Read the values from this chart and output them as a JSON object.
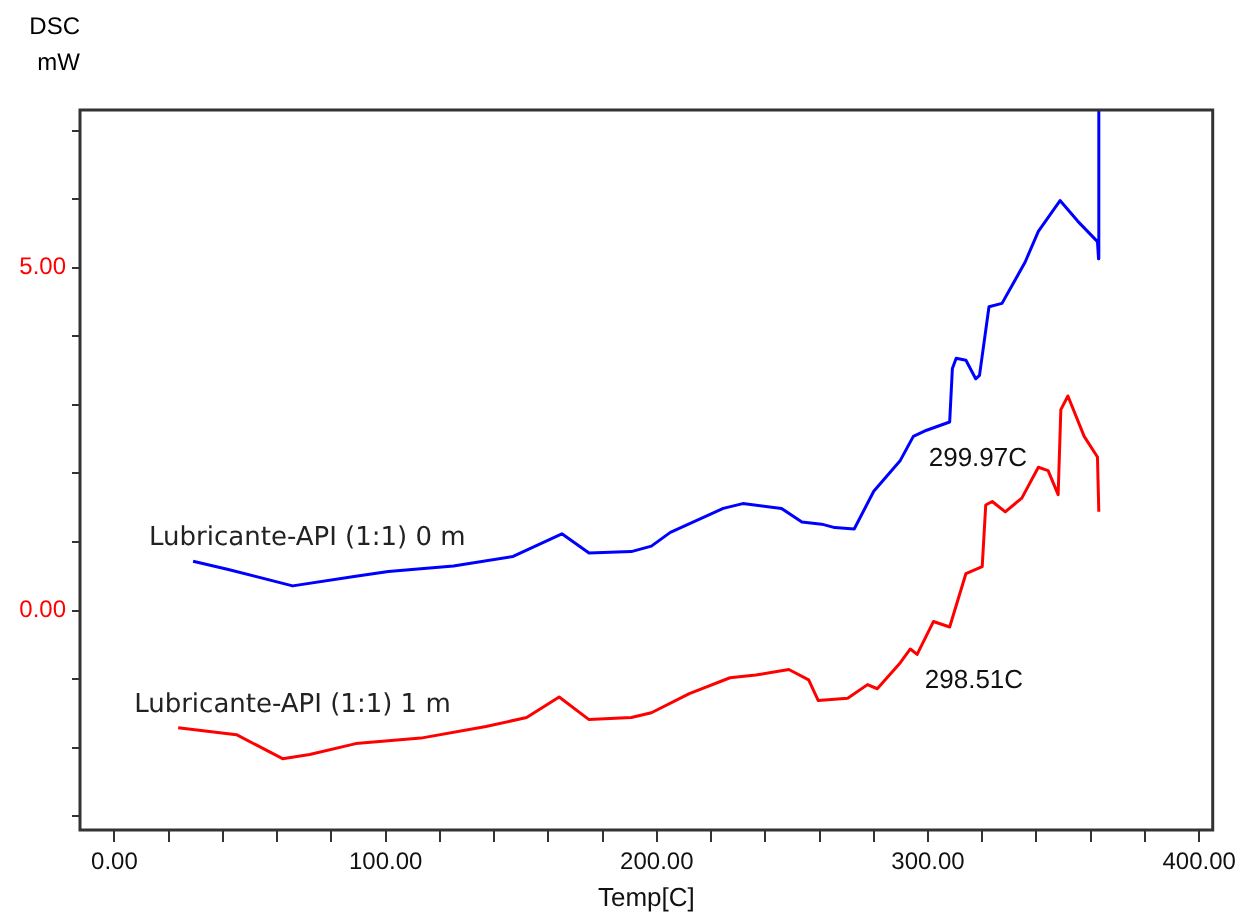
{
  "chart_data": {
    "type": "line",
    "xlabel": "Temp[C]",
    "ylabel": "DSC\nmW",
    "xlim": [
      -12.7,
      405
    ],
    "ylim": [
      -3.2,
      7.3
    ],
    "xticks": [
      {
        "value": 0,
        "label": "0.00"
      },
      {
        "value": 20,
        "label": null
      },
      {
        "value": 40,
        "label": null
      },
      {
        "value": 60,
        "label": null
      },
      {
        "value": 80,
        "label": null
      },
      {
        "value": 100,
        "label": "100.00"
      },
      {
        "value": 120,
        "label": null
      },
      {
        "value": 140,
        "label": null
      },
      {
        "value": 160,
        "label": null
      },
      {
        "value": 180,
        "label": null
      },
      {
        "value": 200,
        "label": "200.00"
      },
      {
        "value": 220,
        "label": null
      },
      {
        "value": 240,
        "label": null
      },
      {
        "value": 260,
        "label": null
      },
      {
        "value": 280,
        "label": null
      },
      {
        "value": 300,
        "label": "300.00"
      },
      {
        "value": 320,
        "label": null
      },
      {
        "value": 340,
        "label": null
      },
      {
        "value": 360,
        "label": null
      },
      {
        "value": 380,
        "label": null
      },
      {
        "value": 400,
        "label": "400.00"
      }
    ],
    "yticks": [
      {
        "value": -3,
        "label": null
      },
      {
        "value": -2,
        "label": null
      },
      {
        "value": -1,
        "label": null
      },
      {
        "value": 0,
        "label": "0.00"
      },
      {
        "value": 1,
        "label": null
      },
      {
        "value": 2,
        "label": null
      },
      {
        "value": 3,
        "label": null
      },
      {
        "value": 4,
        "label": null
      },
      {
        "value": 5,
        "label": "5.00"
      },
      {
        "value": 6,
        "label": null
      },
      {
        "value": 7,
        "label": null
      }
    ],
    "grid": false,
    "legend": false,
    "marker": "none",
    "line_style": "solid",
    "series": [
      {
        "name": "Lubricante-API (1:1) 0 m",
        "color": "#0000ff",
        "x": [
          29,
          42,
          65.7,
          89,
          101,
          125,
          147,
          165,
          175,
          190.6,
          198,
          205,
          224.5,
          231.7,
          246,
          253.5,
          260.8,
          265.6,
          272.8,
          280,
          289.8,
          294.6,
          299.5,
          308,
          309,
          310.4,
          314,
          317.6,
          319,
          322.5,
          327.3,
          335.8,
          340.7,
          348.7,
          355.2,
          362.5,
          362.9,
          363
        ],
        "values": [
          0.72,
          0.6,
          0.36,
          0.5,
          0.57,
          0.65,
          0.79,
          1.12,
          0.84,
          0.86,
          0.94,
          1.14,
          1.49,
          1.56,
          1.49,
          1.29,
          1.26,
          1.21,
          1.19,
          1.74,
          2.19,
          2.54,
          2.63,
          2.75,
          3.53,
          3.68,
          3.65,
          3.38,
          3.43,
          4.43,
          4.48,
          5.08,
          5.53,
          5.98,
          5.68,
          5.38,
          5.13,
          7.3
        ]
      },
      {
        "name": "Lubricante-API (1:1) 1 m",
        "color": "#ff0000",
        "x": [
          23.5,
          45,
          62,
          72,
          89,
          113,
          137,
          152,
          164,
          175,
          190.6,
          198,
          212,
          227,
          236.5,
          248.7,
          256,
          259.5,
          270.4,
          277.7,
          281.3,
          289.8,
          293.5,
          296,
          302,
          308,
          314,
          320,
          321.3,
          323.7,
          328.5,
          334.6,
          340.7,
          344.3,
          348,
          349,
          351.6,
          357.6,
          362.5,
          363
        ],
        "values": [
          -1.71,
          -1.81,
          -2.16,
          -2.1,
          -1.94,
          -1.86,
          -1.69,
          -1.56,
          -1.26,
          -1.59,
          -1.56,
          -1.49,
          -1.21,
          -0.98,
          -0.94,
          -0.86,
          -1.01,
          -1.31,
          -1.28,
          -1.08,
          -1.14,
          -0.76,
          -0.56,
          -0.64,
          -0.16,
          -0.24,
          0.54,
          0.64,
          1.54,
          1.59,
          1.44,
          1.64,
          2.09,
          2.04,
          1.69,
          2.93,
          3.13,
          2.54,
          2.24,
          1.44
        ]
      }
    ],
    "annotations": [
      {
        "text": "299.97C",
        "x": 299.97,
        "y": 2.63
      },
      {
        "text": "298.51C",
        "x": 298.51,
        "y": -0.6
      }
    ]
  }
}
